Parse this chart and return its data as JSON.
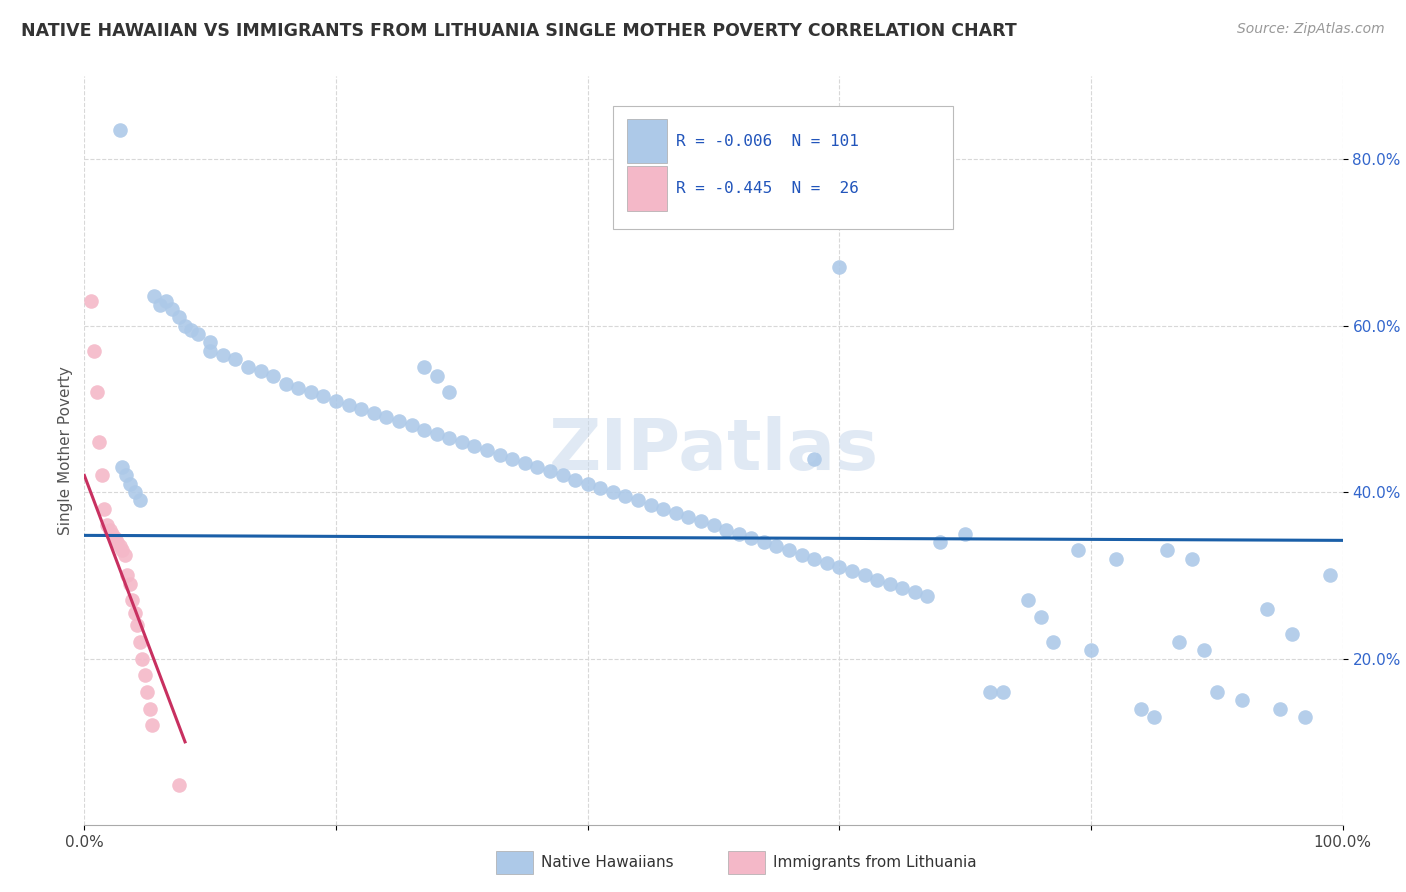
{
  "title": "NATIVE HAWAIIAN VS IMMIGRANTS FROM LITHUANIA SINGLE MOTHER POVERTY CORRELATION CHART",
  "source": "Source: ZipAtlas.com",
  "ylabel": "Single Mother Poverty",
  "xlim": [
    0.0,
    1.0
  ],
  "ylim": [
    0.0,
    0.9
  ],
  "xtick_positions": [
    0.0,
    1.0
  ],
  "xtick_labels": [
    "0.0%",
    "100.0%"
  ],
  "ytick_positions": [
    0.2,
    0.4,
    0.6,
    0.8
  ],
  "ytick_labels": [
    "20.0%",
    "40.0%",
    "60.0%",
    "80.0%"
  ],
  "legend_line1": "R = -0.006  N = 101",
  "legend_line2": "R = -0.445  N =  26",
  "blue_color": "#adc9e8",
  "pink_color": "#f4b8c8",
  "blue_line_color": "#1a5fa8",
  "pink_line_color": "#c83060",
  "watermark": "ZIPatlas",
  "background_color": "#ffffff",
  "grid_color": "#d8d8d8",
  "blue_scatter_x": [
    0.028,
    0.055,
    0.06,
    0.065,
    0.07,
    0.075,
    0.08,
    0.085,
    0.09,
    0.1,
    0.1,
    0.11,
    0.12,
    0.13,
    0.14,
    0.15,
    0.16,
    0.17,
    0.18,
    0.19,
    0.2,
    0.21,
    0.22,
    0.23,
    0.24,
    0.25,
    0.26,
    0.27,
    0.28,
    0.29,
    0.3,
    0.31,
    0.32,
    0.33,
    0.34,
    0.35,
    0.36,
    0.37,
    0.38,
    0.39,
    0.4,
    0.41,
    0.42,
    0.43,
    0.44,
    0.45,
    0.46,
    0.47,
    0.48,
    0.49,
    0.5,
    0.51,
    0.52,
    0.53,
    0.54,
    0.55,
    0.56,
    0.57,
    0.58,
    0.59,
    0.6,
    0.61,
    0.62,
    0.63,
    0.64,
    0.65,
    0.66,
    0.67,
    0.58,
    0.6,
    0.68,
    0.7,
    0.72,
    0.73,
    0.75,
    0.76,
    0.77,
    0.79,
    0.8,
    0.82,
    0.84,
    0.85,
    0.86,
    0.87,
    0.88,
    0.89,
    0.9,
    0.92,
    0.94,
    0.95,
    0.96,
    0.97,
    0.99,
    0.27,
    0.28,
    0.29,
    0.03,
    0.033,
    0.036,
    0.04,
    0.044
  ],
  "blue_scatter_y": [
    0.835,
    0.635,
    0.625,
    0.63,
    0.62,
    0.61,
    0.6,
    0.595,
    0.59,
    0.58,
    0.57,
    0.565,
    0.56,
    0.55,
    0.545,
    0.54,
    0.53,
    0.525,
    0.52,
    0.515,
    0.51,
    0.505,
    0.5,
    0.495,
    0.49,
    0.485,
    0.48,
    0.475,
    0.47,
    0.465,
    0.46,
    0.455,
    0.45,
    0.445,
    0.44,
    0.435,
    0.43,
    0.425,
    0.42,
    0.415,
    0.41,
    0.405,
    0.4,
    0.395,
    0.39,
    0.385,
    0.38,
    0.375,
    0.37,
    0.365,
    0.36,
    0.355,
    0.35,
    0.345,
    0.34,
    0.335,
    0.33,
    0.325,
    0.32,
    0.315,
    0.31,
    0.305,
    0.3,
    0.295,
    0.29,
    0.285,
    0.28,
    0.275,
    0.44,
    0.67,
    0.34,
    0.35,
    0.16,
    0.16,
    0.27,
    0.25,
    0.22,
    0.33,
    0.21,
    0.32,
    0.14,
    0.13,
    0.33,
    0.22,
    0.32,
    0.21,
    0.16,
    0.15,
    0.26,
    0.14,
    0.23,
    0.13,
    0.3,
    0.55,
    0.54,
    0.52,
    0.43,
    0.42,
    0.41,
    0.4,
    0.39
  ],
  "pink_scatter_x": [
    0.005,
    0.008,
    0.01,
    0.012,
    0.014,
    0.016,
    0.018,
    0.02,
    0.022,
    0.024,
    0.026,
    0.028,
    0.03,
    0.032,
    0.034,
    0.036,
    0.038,
    0.04,
    0.042,
    0.044,
    0.046,
    0.048,
    0.05,
    0.052,
    0.054,
    0.075
  ],
  "pink_scatter_y": [
    0.63,
    0.57,
    0.52,
    0.46,
    0.42,
    0.38,
    0.36,
    0.355,
    0.35,
    0.345,
    0.34,
    0.335,
    0.33,
    0.325,
    0.3,
    0.29,
    0.27,
    0.255,
    0.24,
    0.22,
    0.2,
    0.18,
    0.16,
    0.14,
    0.12,
    0.048
  ],
  "blue_trend_x": [
    0.0,
    1.0
  ],
  "blue_trend_y": [
    0.348,
    0.342
  ],
  "pink_trend_x": [
    0.0,
    0.08
  ],
  "pink_trend_y": [
    0.42,
    0.1
  ]
}
